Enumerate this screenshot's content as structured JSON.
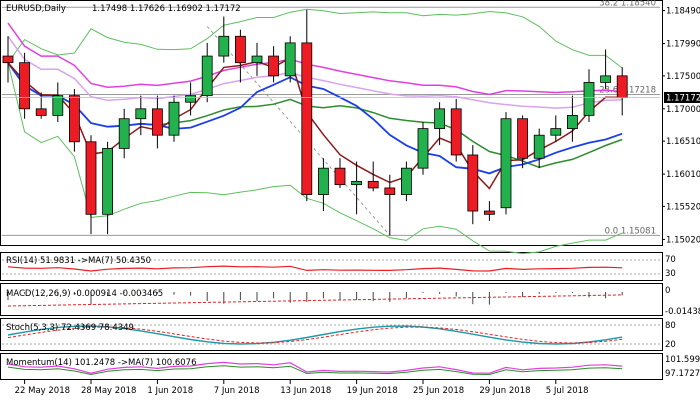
{
  "chart_data": {
    "type": "candlestick",
    "symbol_label": "EURUSD,Daily",
    "ohlc_label": "1.17498 1.17626 1.16902 1.17172",
    "current_price": "1.17172",
    "ylim": [
      1.1495,
      1.1862
    ],
    "price_ticks": [
      "1.18490",
      "1.17990",
      "1.17500",
      "1.17000",
      "1.16510",
      "1.16010",
      "1.15520",
      "1.15020"
    ],
    "x_tick_labels": [
      "22 May 2018",
      "28 May 2018",
      "1 Jun 2018",
      "7 Jun 2018",
      "13 Jun 2018",
      "19 Jun 2018",
      "25 Jun 2018",
      "29 Jun 2018",
      "5 Jul 2018"
    ],
    "fib_levels": [
      {
        "label": "38.2 1.18540",
        "price": 1.1854
      },
      {
        "label": "23.6 1.17218",
        "price": 1.17218
      },
      {
        "label": "0.0 1.15081",
        "price": 1.15081
      }
    ],
    "candles": [
      {
        "date": "2018-05-21",
        "o": 1.178,
        "h": 1.181,
        "l": 1.174,
        "c": 1.177
      },
      {
        "date": "2018-05-22",
        "o": 1.177,
        "h": 1.1785,
        "l": 1.1685,
        "c": 1.17
      },
      {
        "date": "2018-05-23",
        "o": 1.17,
        "h": 1.1725,
        "l": 1.1685,
        "c": 1.169
      },
      {
        "date": "2018-05-24",
        "o": 1.169,
        "h": 1.174,
        "l": 1.168,
        "c": 1.172
      },
      {
        "date": "2018-05-25",
        "o": 1.172,
        "h": 1.173,
        "l": 1.1635,
        "c": 1.165
      },
      {
        "date": "2018-05-28",
        "o": 1.165,
        "h": 1.166,
        "l": 1.151,
        "c": 1.154
      },
      {
        "date": "2018-05-29",
        "o": 1.154,
        "h": 1.165,
        "l": 1.151,
        "c": 1.164
      },
      {
        "date": "2018-05-30",
        "o": 1.164,
        "h": 1.17,
        "l": 1.1625,
        "c": 1.1685
      },
      {
        "date": "2018-05-31",
        "o": 1.1685,
        "h": 1.172,
        "l": 1.166,
        "c": 1.17
      },
      {
        "date": "2018-06-01",
        "o": 1.17,
        "h": 1.172,
        "l": 1.164,
        "c": 1.166
      },
      {
        "date": "2018-06-04",
        "o": 1.166,
        "h": 1.172,
        "l": 1.165,
        "c": 1.171
      },
      {
        "date": "2018-06-05",
        "o": 1.171,
        "h": 1.174,
        "l": 1.169,
        "c": 1.172
      },
      {
        "date": "2018-06-06",
        "o": 1.172,
        "h": 1.18,
        "l": 1.171,
        "c": 1.178
      },
      {
        "date": "2018-06-07",
        "o": 1.178,
        "h": 1.184,
        "l": 1.177,
        "c": 1.181
      },
      {
        "date": "2018-06-08",
        "o": 1.181,
        "h": 1.182,
        "l": 1.174,
        "c": 1.177
      },
      {
        "date": "2018-06-11",
        "o": 1.177,
        "h": 1.18,
        "l": 1.175,
        "c": 1.178
      },
      {
        "date": "2018-06-12",
        "o": 1.178,
        "h": 1.1795,
        "l": 1.174,
        "c": 1.175
      },
      {
        "date": "2018-06-13",
        "o": 1.175,
        "h": 1.181,
        "l": 1.174,
        "c": 1.18
      },
      {
        "date": "2018-06-14",
        "o": 1.18,
        "h": 1.185,
        "l": 1.156,
        "c": 1.157
      },
      {
        "date": "2018-06-15",
        "o": 1.157,
        "h": 1.1625,
        "l": 1.1545,
        "c": 1.161
      },
      {
        "date": "2018-06-18",
        "o": 1.161,
        "h": 1.1625,
        "l": 1.158,
        "c": 1.1585
      },
      {
        "date": "2018-06-19",
        "o": 1.1585,
        "h": 1.162,
        "l": 1.154,
        "c": 1.159
      },
      {
        "date": "2018-06-20",
        "o": 1.159,
        "h": 1.162,
        "l": 1.1575,
        "c": 1.158
      },
      {
        "date": "2018-06-21",
        "o": 1.158,
        "h": 1.16,
        "l": 1.1508,
        "c": 1.157
      },
      {
        "date": "2018-06-22",
        "o": 1.157,
        "h": 1.162,
        "l": 1.156,
        "c": 1.161
      },
      {
        "date": "2018-06-25",
        "o": 1.161,
        "h": 1.168,
        "l": 1.16,
        "c": 1.167
      },
      {
        "date": "2018-06-26",
        "o": 1.167,
        "h": 1.171,
        "l": 1.1645,
        "c": 1.17
      },
      {
        "date": "2018-06-27",
        "o": 1.17,
        "h": 1.1715,
        "l": 1.162,
        "c": 1.163
      },
      {
        "date": "2018-06-28",
        "o": 1.163,
        "h": 1.1645,
        "l": 1.1525,
        "c": 1.1545
      },
      {
        "date": "2018-06-29",
        "o": 1.1545,
        "h": 1.156,
        "l": 1.153,
        "c": 1.154
      },
      {
        "date": "2018-07-02",
        "o": 1.155,
        "h": 1.1695,
        "l": 1.154,
        "c": 1.1685
      },
      {
        "date": "2018-07-03",
        "o": 1.1685,
        "h": 1.169,
        "l": 1.161,
        "c": 1.1625
      },
      {
        "date": "2018-07-04",
        "o": 1.1625,
        "h": 1.167,
        "l": 1.161,
        "c": 1.166
      },
      {
        "date": "2018-07-05",
        "o": 1.166,
        "h": 1.169,
        "l": 1.165,
        "c": 1.167
      },
      {
        "date": "2018-07-06",
        "o": 1.167,
        "h": 1.172,
        "l": 1.165,
        "c": 1.169
      },
      {
        "date": "2018-07-09",
        "o": 1.169,
        "h": 1.176,
        "l": 1.168,
        "c": 1.174
      },
      {
        "date": "2018-07-10",
        "o": 1.174,
        "h": 1.179,
        "l": 1.173,
        "c": 1.175
      },
      {
        "date": "2018-07-11",
        "o": 1.175,
        "h": 1.1763,
        "l": 1.169,
        "c": 1.1717
      }
    ],
    "indicators": [
      {
        "label": "RSI(14) 51.9831  ->MA(7) 50.4350",
        "scale_top": "70",
        "scale_bottom": "30"
      },
      {
        "label": "MACD(12,26,9) -0.000914 -0.003465",
        "scale_top": "0",
        "scale_bottom": "-0.014383"
      },
      {
        "label": "Stoch(5,3,3) 72.4369 78.4349",
        "scale_top": "80",
        "scale_bottom": "20"
      },
      {
        "label": "Momentum(14) 101.2478  ->MA(7) 100.6076",
        "scale_top": "101.5992",
        "scale_bottom": "97.1727"
      }
    ],
    "colors": {
      "bull": "#22b14c",
      "bear": "#ed1c24",
      "ma_pink": "#e040e0",
      "ma_blue": "#1a3ee8",
      "ma_darkred": "#8b1a1a",
      "ma_green": "#2e8b2e",
      "ma_lightgreen": "#5fbf5f",
      "ma_lavender": "#d7a4ef"
    }
  }
}
